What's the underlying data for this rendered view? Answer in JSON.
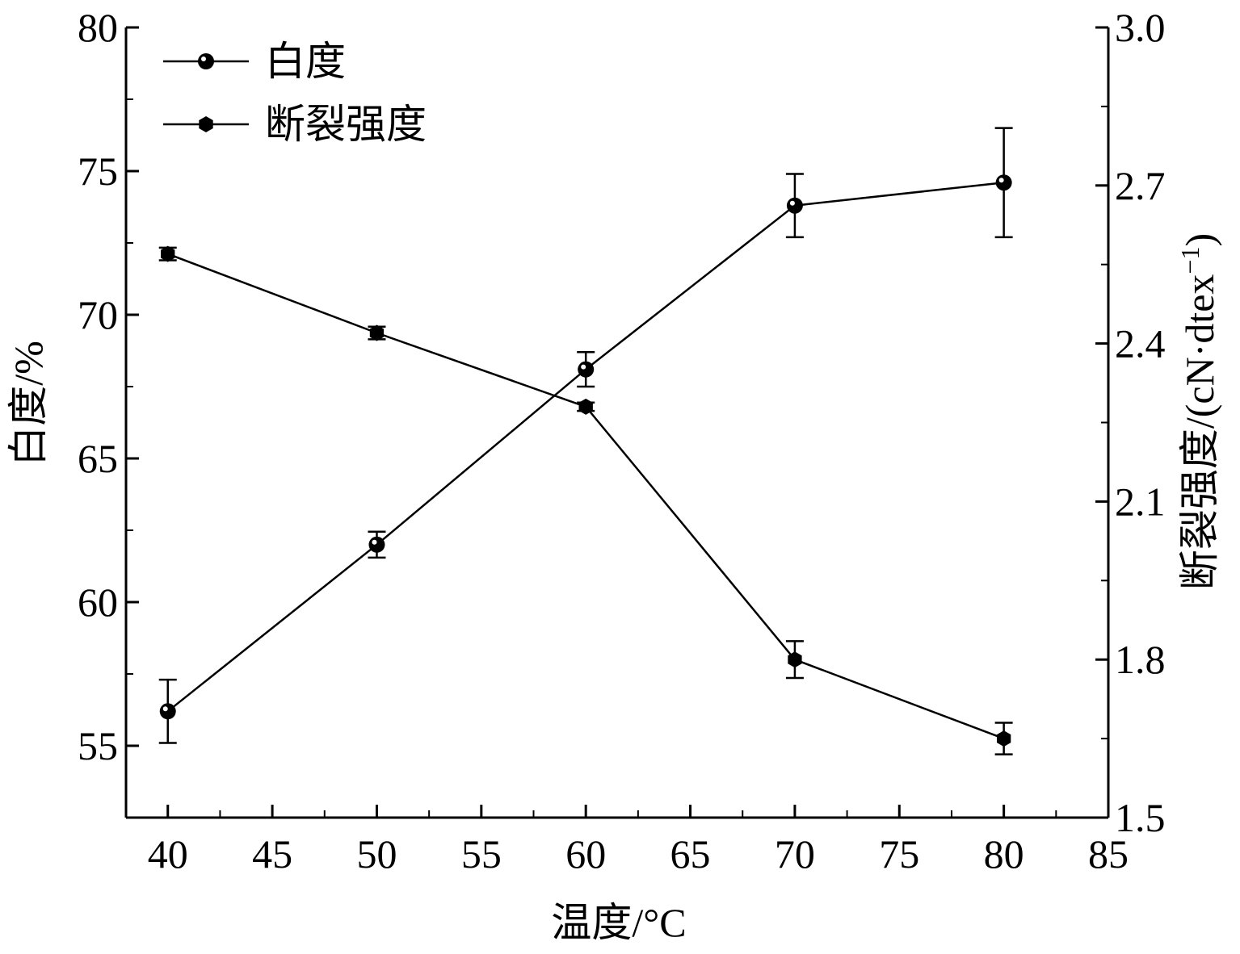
{
  "chart_data": {
    "type": "line",
    "x": [
      40,
      50,
      60,
      70,
      80
    ],
    "xlabel": "温度/°C",
    "xlim": [
      38,
      85
    ],
    "xticks": [
      "40",
      "45",
      "50",
      "55",
      "60",
      "65",
      "70",
      "75",
      "80",
      "85"
    ],
    "ylabel_left": "白度/%",
    "ylim_left": [
      52.5,
      80
    ],
    "yticks_left": [
      "55",
      "60",
      "65",
      "70",
      "75",
      "80"
    ],
    "ylabel_right_main": "断裂强度/(cN·dtex",
    "ylabel_right_sup": "−1",
    "ylabel_right_close": ")",
    "ylim_right": [
      1.5,
      3.0
    ],
    "yticks_right": [
      "1.5",
      "1.8",
      "2.1",
      "2.4",
      "2.7",
      "3.0"
    ],
    "grid": false,
    "legend_position": "top-left",
    "series": [
      {
        "name": "白度",
        "axis": "left",
        "marker": "circle",
        "values": [
          56.2,
          62.0,
          68.1,
          73.8,
          74.6
        ],
        "errors": [
          1.1,
          0.45,
          0.6,
          1.1,
          1.9
        ]
      },
      {
        "name": "断裂强度",
        "axis": "right",
        "marker": "hexagon",
        "values": [
          2.57,
          2.42,
          2.28,
          1.8,
          1.65
        ],
        "errors": [
          0.012,
          0.012,
          0.008,
          0.035,
          0.03
        ]
      }
    ],
    "colors": {
      "line": "#000000",
      "background": "#ffffff"
    }
  }
}
